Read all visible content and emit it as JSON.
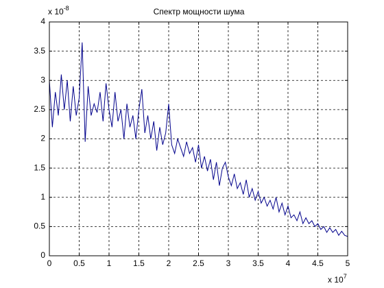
{
  "chart_data": {
    "type": "line",
    "title": "Спектр мощности шума",
    "y_multiplier": {
      "base": "x 10",
      "exponent": "-8"
    },
    "x_multiplier": {
      "base": "x 10",
      "exponent": "7"
    },
    "color": "#00008b",
    "grid": true,
    "xlim": [
      0,
      5
    ],
    "xticks": [
      0,
      0.5,
      1,
      1.5,
      2,
      2.5,
      3,
      3.5,
      4,
      4.5,
      5
    ],
    "ylim": [
      0,
      4
    ],
    "yticks": [
      0,
      0.5,
      1,
      1.5,
      2,
      2.5,
      3,
      3.5,
      4
    ],
    "x": [
      0,
      0.05,
      0.1,
      0.15,
      0.2,
      0.25,
      0.3,
      0.35,
      0.4,
      0.45,
      0.5,
      0.55,
      0.6,
      0.65,
      0.7,
      0.75,
      0.8,
      0.85,
      0.9,
      0.95,
      1,
      1.05,
      1.1,
      1.15,
      1.2,
      1.25,
      1.3,
      1.35,
      1.4,
      1.45,
      1.5,
      1.55,
      1.6,
      1.65,
      1.7,
      1.75,
      1.8,
      1.85,
      1.9,
      1.95,
      2,
      2.05,
      2.1,
      2.15,
      2.2,
      2.25,
      2.3,
      2.35,
      2.4,
      2.45,
      2.5,
      2.55,
      2.6,
      2.65,
      2.7,
      2.75,
      2.8,
      2.85,
      2.9,
      2.95,
      3,
      3.05,
      3.1,
      3.15,
      3.2,
      3.25,
      3.3,
      3.35,
      3.4,
      3.45,
      3.5,
      3.55,
      3.6,
      3.65,
      3.7,
      3.75,
      3.8,
      3.85,
      3.9,
      3.95,
      4,
      4.05,
      4.1,
      4.15,
      4.2,
      4.25,
      4.3,
      4.35,
      4.4,
      4.45,
      4.5,
      4.55,
      4.6,
      4.65,
      4.7,
      4.75,
      4.8,
      4.85,
      4.9,
      4.95,
      5
    ],
    "values": [
      3.0,
      2.2,
      2.8,
      2.4,
      3.1,
      2.5,
      3.0,
      2.3,
      2.9,
      2.4,
      2.7,
      3.65,
      1.95,
      2.9,
      2.4,
      2.6,
      2.45,
      2.8,
      2.3,
      2.95,
      2.5,
      2.2,
      2.8,
      2.3,
      2.5,
      2.0,
      2.6,
      2.2,
      2.4,
      2.0,
      2.5,
      2.85,
      2.1,
      2.4,
      2.0,
      2.3,
      1.8,
      2.2,
      1.9,
      2.1,
      2.6,
      1.9,
      1.75,
      2.0,
      1.85,
      1.7,
      1.95,
      1.75,
      1.85,
      1.6,
      1.9,
      1.5,
      1.7,
      1.45,
      1.65,
      1.3,
      1.6,
      1.2,
      1.5,
      1.6,
      1.35,
      1.2,
      1.4,
      1.15,
      1.25,
      1.05,
      1.3,
      1.0,
      1.15,
      0.95,
      1.1,
      0.9,
      1.0,
      0.85,
      0.95,
      0.8,
      1.0,
      0.75,
      0.9,
      0.7,
      0.85,
      0.65,
      0.7,
      0.6,
      0.75,
      0.55,
      0.65,
      0.55,
      0.6,
      0.5,
      0.55,
      0.45,
      0.5,
      0.4,
      0.48,
      0.4,
      0.45,
      0.35,
      0.42,
      0.35,
      0.33
    ]
  }
}
